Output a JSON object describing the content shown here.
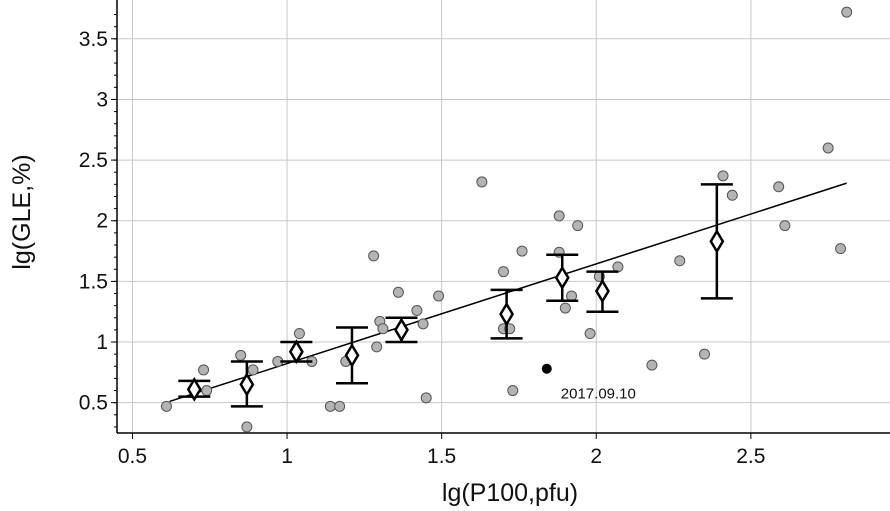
{
  "chart_data": {
    "type": "scatter",
    "xlabel": "lg(P100,pfu)",
    "ylabel": "lg(GLE,%)",
    "xlim": [
      0.45,
      2.95
    ],
    "ylim": [
      0.25,
      3.82
    ],
    "xticks": [
      0.5,
      1,
      1.5,
      2,
      2.5
    ],
    "xtick_labels": [
      "0.5",
      "1",
      "1.5",
      "2",
      "2.5"
    ],
    "yticks": [
      0.5,
      1,
      1.5,
      2,
      2.5,
      3,
      3.5
    ],
    "ytick_labels": [
      "0.5",
      "1",
      "1.5",
      "2",
      "2.5",
      "3",
      "3.5"
    ],
    "grid": true,
    "points": [
      [
        0.61,
        0.47
      ],
      [
        0.73,
        0.77
      ],
      [
        0.74,
        0.6
      ],
      [
        0.85,
        0.89
      ],
      [
        0.87,
        0.3
      ],
      [
        0.89,
        0.77
      ],
      [
        0.97,
        0.84
      ],
      [
        1.04,
        1.07
      ],
      [
        1.08,
        0.84
      ],
      [
        1.14,
        0.47
      ],
      [
        1.17,
        0.47
      ],
      [
        1.19,
        0.84
      ],
      [
        1.28,
        1.71
      ],
      [
        1.29,
        0.96
      ],
      [
        1.3,
        1.17
      ],
      [
        1.31,
        1.11
      ],
      [
        1.36,
        1.41
      ],
      [
        1.42,
        1.26
      ],
      [
        1.44,
        1.15
      ],
      [
        1.45,
        0.54
      ],
      [
        1.49,
        1.38
      ],
      [
        1.63,
        2.32
      ],
      [
        1.7,
        1.58
      ],
      [
        1.7,
        1.11
      ],
      [
        1.72,
        1.11
      ],
      [
        1.73,
        0.6
      ],
      [
        1.76,
        1.75
      ],
      [
        1.88,
        2.04
      ],
      [
        1.88,
        1.74
      ],
      [
        1.9,
        1.28
      ],
      [
        1.92,
        1.38
      ],
      [
        1.94,
        1.96
      ],
      [
        1.98,
        1.07
      ],
      [
        2.01,
        1.54
      ],
      [
        2.07,
        1.62
      ],
      [
        2.18,
        0.81
      ],
      [
        2.27,
        1.67
      ],
      [
        2.35,
        0.9
      ],
      [
        2.41,
        2.37
      ],
      [
        2.44,
        2.21
      ],
      [
        2.59,
        2.28
      ],
      [
        2.61,
        1.96
      ],
      [
        2.75,
        2.6
      ],
      [
        2.79,
        1.77
      ],
      [
        2.81,
        3.72
      ]
    ],
    "outlier": {
      "x": 1.84,
      "y": 0.78,
      "label": "2017.09.10"
    },
    "bin_means": [
      {
        "x": 0.7,
        "y": 0.61,
        "low": 0.55,
        "high": 0.68
      },
      {
        "x": 0.87,
        "y": 0.65,
        "low": 0.47,
        "high": 0.84
      },
      {
        "x": 1.03,
        "y": 0.92,
        "low": 0.84,
        "high": 1.0
      },
      {
        "x": 1.21,
        "y": 0.89,
        "low": 0.66,
        "high": 1.12
      },
      {
        "x": 1.37,
        "y": 1.1,
        "low": 1.0,
        "high": 1.2
      },
      {
        "x": 1.71,
        "y": 1.23,
        "low": 1.03,
        "high": 1.43
      },
      {
        "x": 1.89,
        "y": 1.53,
        "low": 1.34,
        "high": 1.72
      },
      {
        "x": 2.02,
        "y": 1.42,
        "low": 1.25,
        "high": 1.58
      },
      {
        "x": 2.39,
        "y": 1.83,
        "low": 1.36,
        "high": 2.3
      }
    ],
    "fit_line": {
      "x": [
        0.62,
        2.81
      ],
      "y": [
        0.51,
        2.31
      ]
    }
  }
}
